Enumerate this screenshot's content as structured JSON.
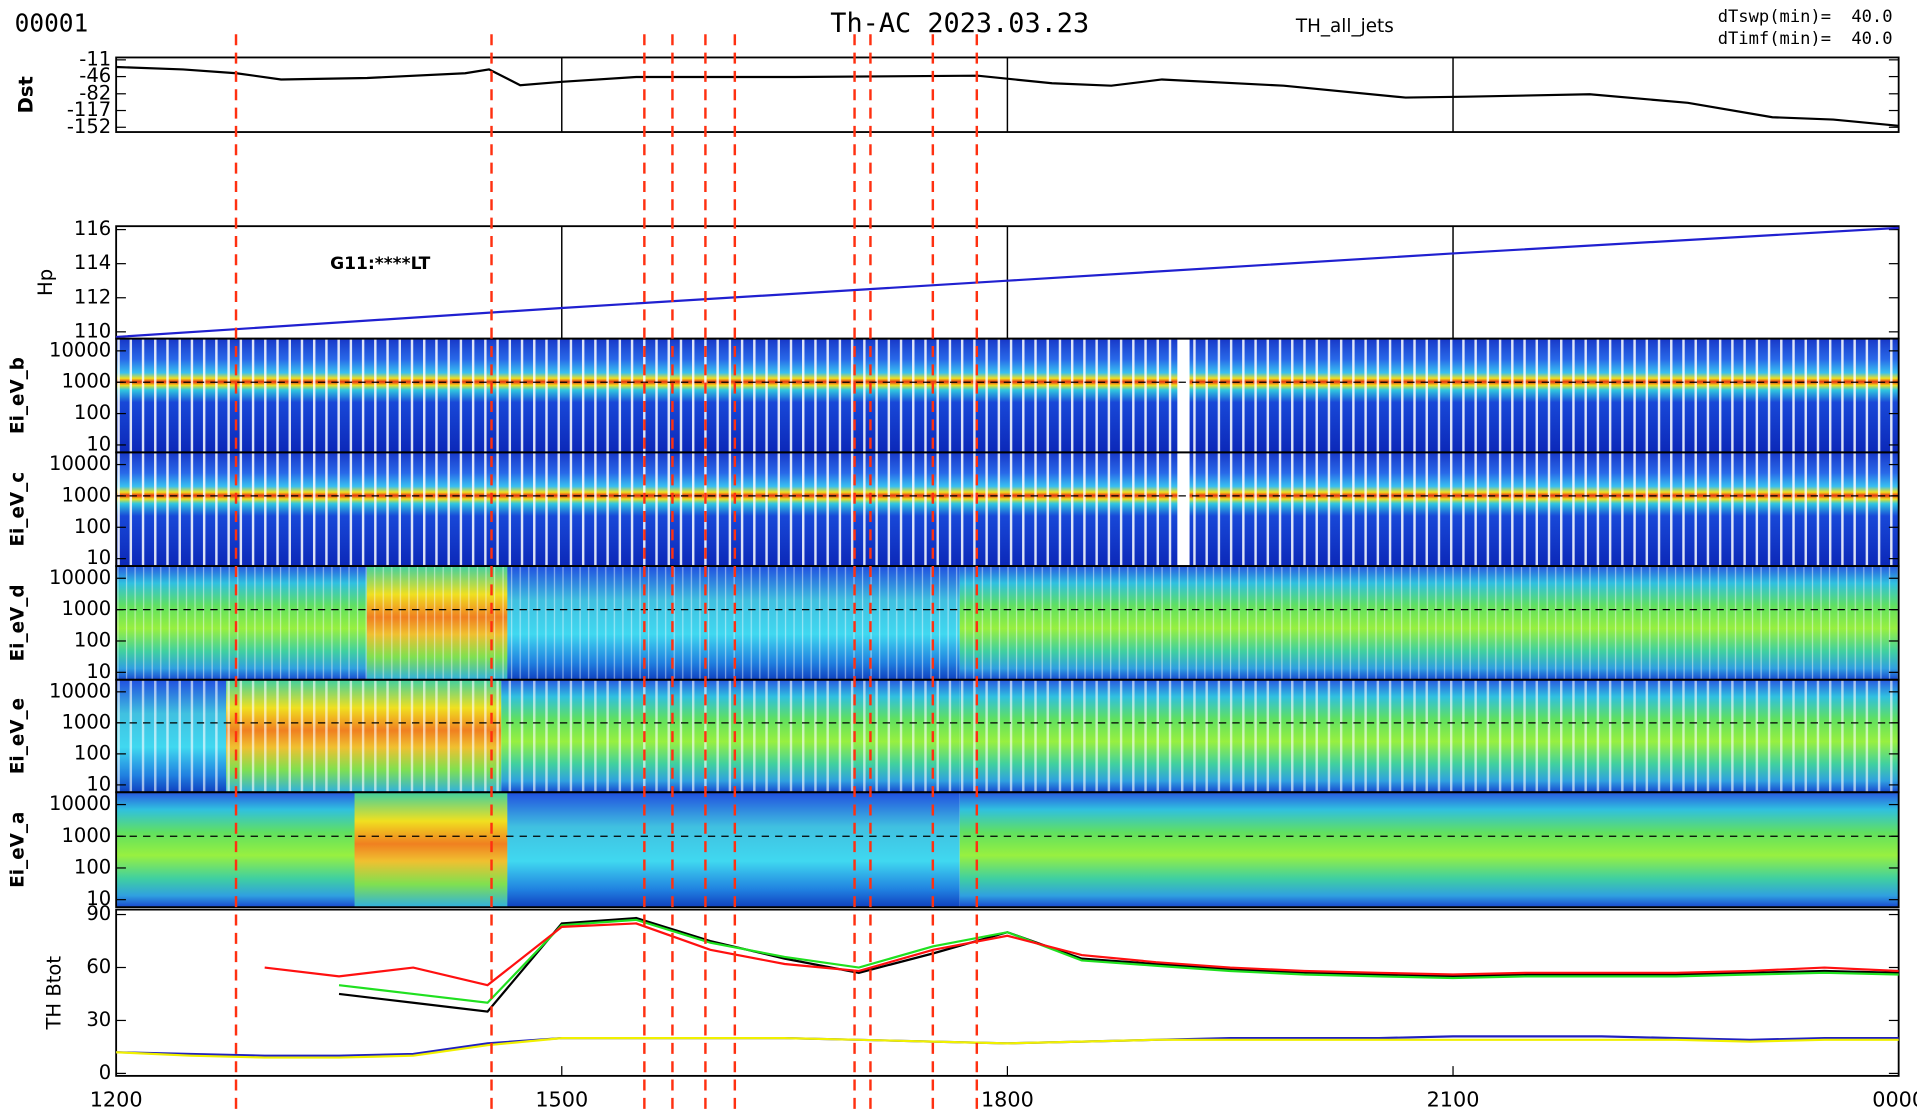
{
  "header": {
    "id": "00001",
    "title": "Th-AC 2023.03.23",
    "label": "TH_all_jets",
    "params": [
      {
        "name": "dTswp(min)=",
        "value": "40.0"
      },
      {
        "name": "dTimf(min)=",
        "value": "40.0"
      }
    ]
  },
  "events": {
    "color": "#ff3010",
    "x": [
      12.807,
      14.527,
      15.556,
      15.745,
      15.967,
      16.165,
      16.971,
      17.078,
      17.498,
      17.794
    ]
  },
  "chart_data": [
    {
      "type": "line",
      "ylabel": "Dst",
      "color": "#000000",
      "grid": true,
      "xlim": [
        12,
        24
      ],
      "ylim": [
        -162,
        -6
      ],
      "yticks": [
        -11,
        -46,
        -82,
        -117,
        -152
      ],
      "x": [
        12.0,
        12.45,
        12.81,
        13.11,
        13.69,
        14.35,
        14.51,
        14.72,
        15.0,
        15.5,
        16.57,
        17.8,
        18.3,
        18.7,
        19.04,
        19.86,
        20.68,
        21.09,
        21.92,
        22.58,
        23.15,
        23.56,
        24.0
      ],
      "values": [
        -26,
        -31,
        -39,
        -52,
        -49,
        -39,
        -31,
        -64,
        -57,
        -47,
        -47,
        -44,
        -60,
        -65,
        -52,
        -65,
        -90,
        -88,
        -83,
        -101,
        -131,
        -136,
        -149
      ]
    },
    {
      "type": "line",
      "ylabel": "Hp",
      "color": "#2020d0",
      "grid": true,
      "annotation": "G11:****LT",
      "xlim": [
        12,
        24
      ],
      "ylim": [
        109.6,
        116.2
      ],
      "yticks": [
        110,
        112,
        114,
        116
      ],
      "x": [
        12,
        15,
        18,
        21,
        24
      ],
      "values": [
        109.7,
        111.4,
        113.0,
        114.6,
        116.1
      ]
    },
    {
      "type": "spectrogram",
      "ylabel": "Ei_eV_b",
      "log_scale": true,
      "hline": 1000,
      "ylim": [
        5.8,
        24500
      ],
      "yticks": [
        10,
        100,
        1000,
        10000
      ]
    },
    {
      "type": "spectrogram",
      "ylabel": "Ei_eV_c",
      "log_scale": true,
      "hline": 1000,
      "ylim": [
        5.8,
        24500
      ],
      "yticks": [
        10,
        100,
        1000,
        10000
      ]
    },
    {
      "type": "spectrogram",
      "ylabel": "Ei_eV_d",
      "log_scale": true,
      "hline": 1000,
      "ylim": [
        5.8,
        24500
      ],
      "yticks": [
        10,
        100,
        1000,
        10000
      ]
    },
    {
      "type": "spectrogram",
      "ylabel": "Ei_eV_e",
      "log_scale": true,
      "hline": 1000,
      "ylim": [
        5.8,
        24500
      ],
      "yticks": [
        10,
        100,
        1000,
        10000
      ]
    },
    {
      "type": "spectrogram",
      "ylabel": "Ei_eV_a",
      "log_scale": true,
      "hline": 1000,
      "ylim": [
        5.8,
        24500
      ],
      "yticks": [
        10,
        100,
        1000,
        10000
      ]
    },
    {
      "type": "line",
      "ylabel": "TH Btot",
      "xlim": [
        12,
        24
      ],
      "ylim": [
        -1.4,
        92.8
      ],
      "yticks": [
        0,
        30,
        60,
        90
      ],
      "xticks": [
        {
          "value": 12,
          "label": "1200"
        },
        {
          "value": 15,
          "label": "1500"
        },
        {
          "value": 18,
          "label": "1800"
        },
        {
          "value": 21,
          "label": "2100"
        },
        {
          "value": 24,
          "label": "0000"
        }
      ],
      "x": [
        12,
        12.5,
        13,
        13.5,
        14,
        14.5,
        15,
        15.5,
        16,
        16.5,
        17,
        17.5,
        18,
        18.5,
        19,
        19.5,
        20,
        20.5,
        21,
        21.5,
        22,
        22.5,
        23,
        23.5,
        24
      ],
      "series": [
        {
          "color": "#000000",
          "values": [
            null,
            null,
            null,
            45,
            40,
            35,
            85,
            88,
            75,
            65,
            57,
            68,
            80,
            65,
            62,
            59,
            57,
            56,
            55,
            56,
            56,
            56,
            57,
            58,
            57
          ]
        },
        {
          "color": "#20e020",
          "values": [
            null,
            null,
            null,
            50,
            45,
            40,
            84,
            87,
            74,
            66,
            60,
            72,
            80,
            64,
            61,
            58,
            56,
            55,
            54,
            55,
            55,
            55,
            56,
            57,
            56
          ]
        },
        {
          "color": "#ff1010",
          "values": [
            null,
            null,
            60,
            55,
            60,
            50,
            83,
            85,
            70,
            62,
            58,
            70,
            78,
            67,
            63,
            60,
            58,
            57,
            56,
            57,
            57,
            57,
            58,
            60,
            58
          ]
        },
        {
          "color": "#2020c0",
          "values": [
            12,
            11,
            10,
            10,
            11,
            17,
            20,
            20,
            20,
            20,
            19,
            18,
            17,
            18,
            19,
            20,
            20,
            20,
            21,
            21,
            21,
            20,
            19,
            20,
            20
          ]
        },
        {
          "color": "#f0f000",
          "values": [
            12,
            10,
            9,
            9,
            10,
            16,
            20,
            20,
            20,
            20,
            19,
            18,
            17,
            18,
            19,
            19,
            19,
            19,
            19,
            19,
            19,
            19,
            18,
            19,
            19
          ]
        }
      ]
    }
  ]
}
